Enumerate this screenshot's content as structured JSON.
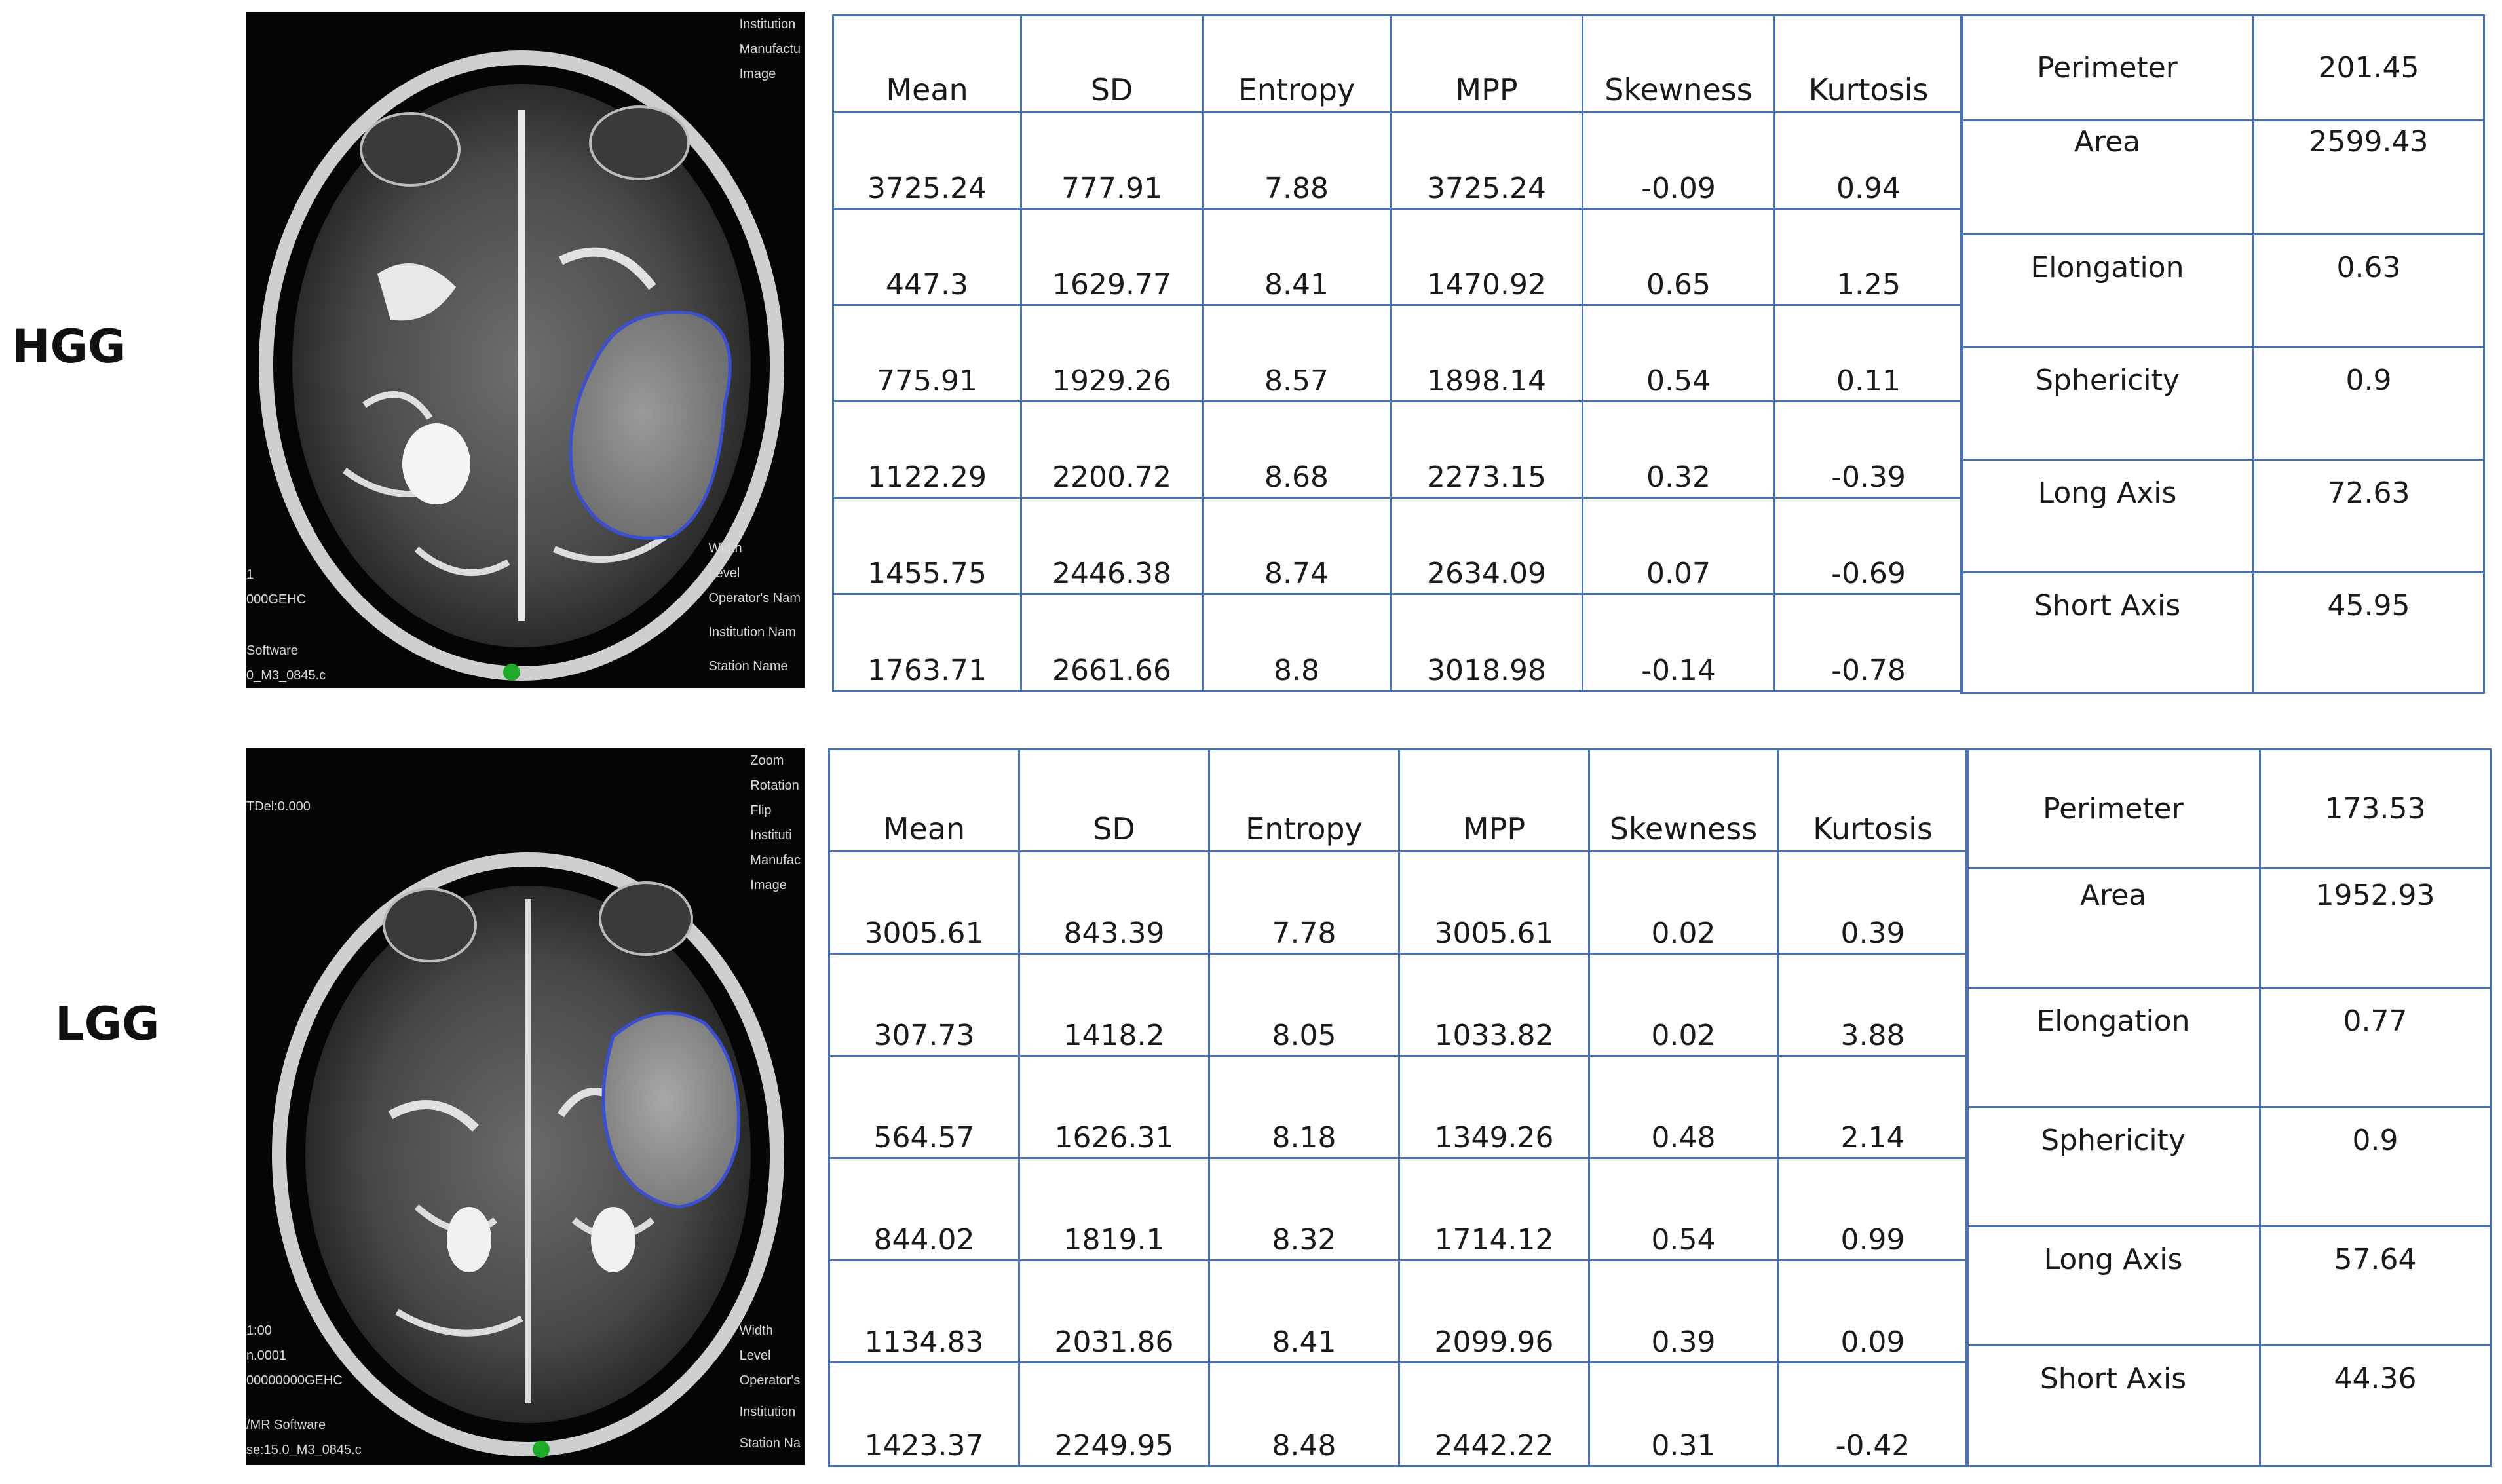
{
  "hgg": {
    "label": "HGG",
    "overlay_right": [
      "Institution",
      "Manufactu",
      "Image",
      "Width",
      "Level",
      "Operator's Nam",
      "Institution Nam",
      "Station Name"
    ],
    "overlay_left": [
      "1",
      "000GEHC",
      "Software",
      "0_M3_0845.c"
    ],
    "stats": {
      "headers": [
        "Mean",
        "SD",
        "Entropy",
        "MPP",
        "Skewness",
        "Kurtosis"
      ],
      "rows": [
        [
          "3725.24",
          "777.91",
          "7.88",
          "3725.24",
          "-0.09",
          "0.94"
        ],
        [
          "447.3",
          "1629.77",
          "8.41",
          "1470.92",
          "0.65",
          "1.25"
        ],
        [
          "775.91",
          "1929.26",
          "8.57",
          "1898.14",
          "0.54",
          "0.11"
        ],
        [
          "1122.29",
          "2200.72",
          "8.68",
          "2273.15",
          "0.32",
          "-0.39"
        ],
        [
          "1455.75",
          "2446.38",
          "8.74",
          "2634.09",
          "0.07",
          "-0.69"
        ],
        [
          "1763.71",
          "2661.66",
          "8.8",
          "3018.98",
          "-0.14",
          "-0.78"
        ]
      ]
    },
    "shape": [
      [
        "Perimeter",
        "201.45"
      ],
      [
        "Area",
        "2599.43"
      ],
      [
        "Elongation",
        "0.63"
      ],
      [
        "Sphericity",
        "0.9"
      ],
      [
        "Long Axis",
        "72.63"
      ],
      [
        "Short Axis",
        "45.95"
      ]
    ]
  },
  "lgg": {
    "label": "LGG",
    "overlay_right": [
      "Zoom",
      "Rotation",
      "Flip",
      "Instituti",
      "Manufac",
      "Image",
      "Width",
      "Level",
      "Operator's",
      "Institution",
      "Station Na"
    ],
    "overlay_left": [
      "TDel:0.000",
      "1:00",
      "n.0001",
      "00000000GEHC",
      "/MR Software",
      "se:15.0_M3_0845.c"
    ],
    "stats": {
      "headers": [
        "Mean",
        "SD",
        "Entropy",
        "MPP",
        "Skewness",
        "Kurtosis"
      ],
      "rows": [
        [
          "3005.61",
          "843.39",
          "7.78",
          "3005.61",
          "0.02",
          "0.39"
        ],
        [
          "307.73",
          "1418.2",
          "8.05",
          "1033.82",
          "0.02",
          "3.88"
        ],
        [
          "564.57",
          "1626.31",
          "8.18",
          "1349.26",
          "0.48",
          "2.14"
        ],
        [
          "844.02",
          "1819.1",
          "8.32",
          "1714.12",
          "0.54",
          "0.99"
        ],
        [
          "1134.83",
          "2031.86",
          "8.41",
          "2099.96",
          "0.39",
          "0.09"
        ],
        [
          "1423.37",
          "2249.95",
          "8.48",
          "2442.22",
          "0.31",
          "-0.42"
        ]
      ]
    },
    "shape": [
      [
        "Perimeter",
        "173.53"
      ],
      [
        "Area",
        "1952.93"
      ],
      [
        "Elongation",
        "0.77"
      ],
      [
        "Sphericity",
        "0.9"
      ],
      [
        "Long Axis",
        "57.64"
      ],
      [
        "Short Axis",
        "44.36"
      ]
    ]
  },
  "colors": {
    "table_border": "#4a6fb0",
    "roi_outline": "#3b4fd0",
    "marker": "#1faa2a"
  }
}
